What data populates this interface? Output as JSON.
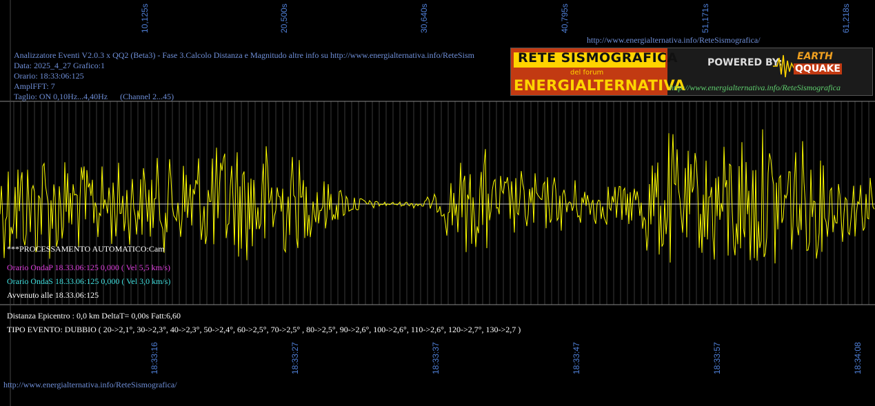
{
  "header": {
    "line1": "Analizzatore Eventi V2.0.3 x QQ2 (Beta3) - Fase 3.Calcolo Distanza e Magnitudo altre info su http://www.energialternativa.info/ReteSism",
    "data": "Data: 2025_4_27 Grafico:1",
    "orario": "Orario: 18:33:06:125",
    "ampl": "AmplFFT: 7",
    "taglio": "Taglio: ON 0,10Hz...4,40Hz      (Channel 2...45)"
  },
  "top_url": "http://www.energialternativa.info/ReteSismografica/",
  "bottom_url": "http://www.energialternativa.info/ReteSismografica/",
  "top_ticks": [
    "10,125s",
    "20,500s",
    "30,640s",
    "40,795s",
    "51,171s",
    "61,218s"
  ],
  "bottom_ticks": [
    "18:33:16",
    "18:33:27",
    "18:33:37",
    "18:33:47",
    "18:33:57",
    "18:34:08"
  ],
  "info": {
    "processing": "***PROCESSAMENTO AUTOMATICO:Cam",
    "ondaP": "Orario OndaP 18.33.06:125  0,000 ( Vel 5,5 km/s)",
    "ondaS": "Orario OndaS 18.33.06:125  0,000 ( Vel 3,0 km/s)",
    "avvenuto": "Avvenuto alle 18.33.06:125",
    "distanza": "Distanza Epicentro : 0,0 km DeltaT= 0,00s  Fatt:6,60",
    "tipo": "TIPO EVENTO: DUBBIO ( 20->2,1°, 30->2,3°, 40->2,3°, 50->2,4°, 60->2,5°, 70->2,5° , 80->2,5°, 90->2,6°, 100->2,6°, 110->2,6°, 120->2,7°, 130->2,7 )"
  },
  "logo": {
    "title1": "RETE SISMOGRAFICA",
    "title2": "del forum",
    "title3": "ENERGIALTERNATIVA",
    "powered": "POWERED BY:",
    "brand1": "EARTH",
    "brand2": "QQUAKE",
    "url": "http://www.energialternativa.info/ReteSismografica"
  },
  "colors": {
    "background": "#000000",
    "trace": "#ffff00",
    "grid": "#5a5a5a",
    "ondaP": "#e040e0",
    "ondaS": "#40e0e0",
    "ticks": "#4f7fd6"
  }
}
